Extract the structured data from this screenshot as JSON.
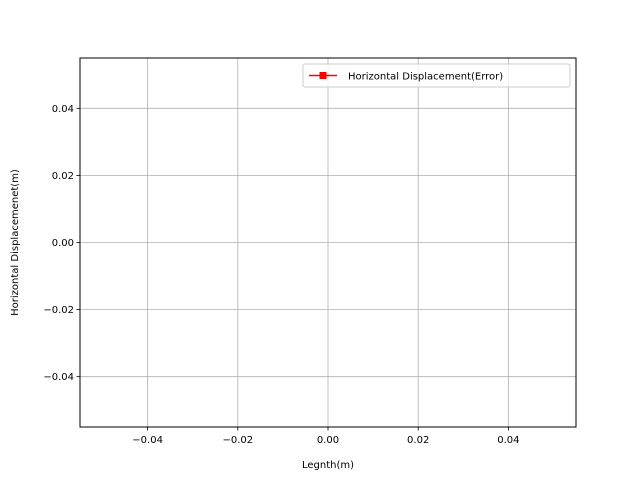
{
  "chart_data": {
    "type": "line",
    "title": "",
    "xlabel": "Legnth(m)",
    "ylabel": "Horizontal Displacemenet(m)",
    "xlim": [
      -0.055,
      0.055
    ],
    "ylim": [
      -0.055,
      0.055
    ],
    "xticks": [
      -0.04,
      -0.02,
      0.0,
      0.02,
      0.04
    ],
    "yticks": [
      -0.04,
      -0.02,
      0.0,
      0.02,
      0.04
    ],
    "xtick_labels": [
      "−0.04",
      "−0.02",
      "0.00",
      "0.02",
      "0.04"
    ],
    "ytick_labels": [
      "−0.04",
      "−0.02",
      "0.00",
      "0.02",
      "0.04"
    ],
    "grid": true,
    "legend_position": "top-right",
    "series": [
      {
        "name": "Horizontal Displacement(Error)",
        "x": [],
        "y": [],
        "color": "#ff0000",
        "marker": "square"
      }
    ]
  }
}
